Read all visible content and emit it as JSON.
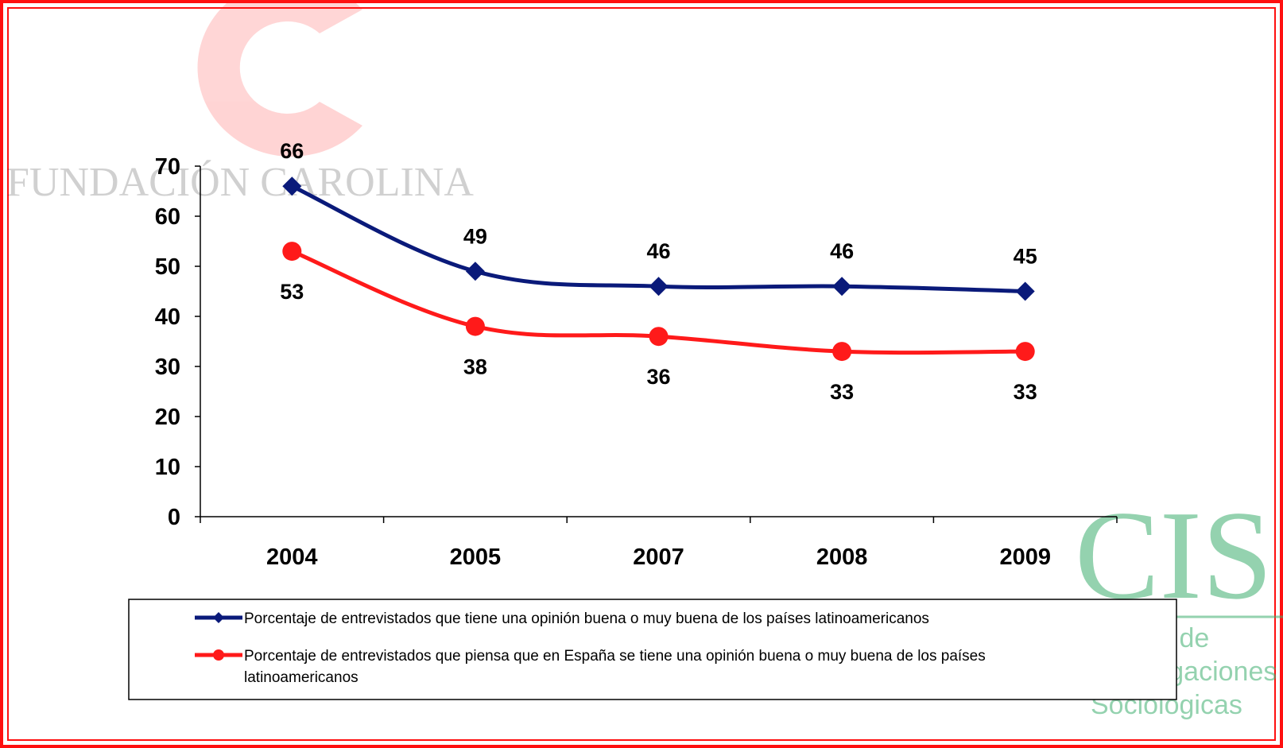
{
  "logos": {
    "fundacion_carolina": {
      "text": "FUNDACIÓN CAROLINA",
      "mark_color": "#ff1a1a"
    },
    "cis": {
      "text": "CIS",
      "subtitle_lines": [
        "Centro de",
        "Investigaciones",
        "Sociológicas"
      ],
      "color": "#3daf6f"
    }
  },
  "colors": {
    "frame": "#ff1010",
    "series_blue": "#0a1a7a",
    "series_red": "#ff1a1a"
  },
  "chart_data": {
    "type": "line",
    "categories": [
      "2004",
      "2005",
      "2007",
      "2008",
      "2009"
    ],
    "ylim": [
      0,
      70
    ],
    "yticks": [
      "0",
      "10",
      "20",
      "30",
      "40",
      "50",
      "60",
      "70"
    ],
    "grid": false,
    "legend_position": "bottom",
    "series": [
      {
        "name": "Porcentaje de entrevistados que tiene una opinión buena o muy buena de los países latinoamericanos",
        "values": [
          66,
          49,
          46,
          46,
          45
        ],
        "labels": [
          "66",
          "49",
          "46",
          "46",
          "45"
        ],
        "color": "#0a1a7a",
        "marker": "diamond"
      },
      {
        "name": "Porcentaje de entrevistados que piensa que en España se tiene una opinión buena o muy buena de los países latinoamericanos",
        "values": [
          53,
          38,
          36,
          33,
          33
        ],
        "labels": [
          "53",
          "38",
          "36",
          "33",
          "33"
        ],
        "color": "#ff1a1a",
        "marker": "circle"
      }
    ]
  }
}
